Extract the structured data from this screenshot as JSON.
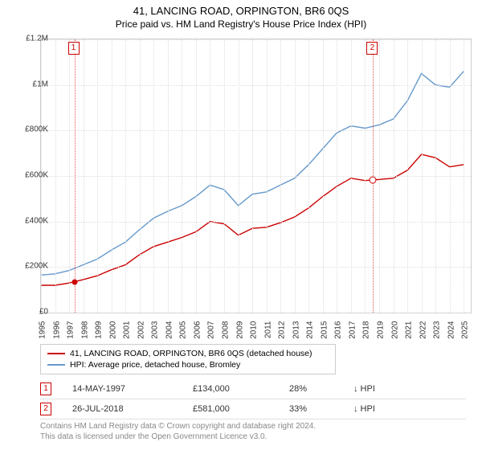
{
  "title": "41, LANCING ROAD, ORPINGTON, BR6 0QS",
  "subtitle": "Price paid vs. HM Land Registry's House Price Index (HPI)",
  "chart": {
    "type": "line",
    "background_color": "#ffffff",
    "grid_color": "#dddddd",
    "border_color": "#cccccc",
    "xlim": [
      1995,
      2025.5
    ],
    "ylim": [
      0,
      1200000
    ],
    "y_ticks": [
      0,
      200000,
      400000,
      600000,
      800000,
      1000000,
      1200000
    ],
    "y_tick_labels": [
      "£0",
      "£200K",
      "£400K",
      "£600K",
      "£800K",
      "£1M",
      "£1.2M"
    ],
    "x_ticks": [
      1995,
      1996,
      1997,
      1998,
      1999,
      2000,
      2001,
      2002,
      2003,
      2004,
      2005,
      2006,
      2007,
      2008,
      2009,
      2010,
      2011,
      2012,
      2013,
      2014,
      2015,
      2016,
      2017,
      2018,
      2019,
      2020,
      2021,
      2022,
      2023,
      2024,
      2025
    ],
    "label_fontsize": 10,
    "line_width": 1.4,
    "series": [
      {
        "name": "41, LANCING ROAD, ORPINGTON, BR6 0QS (detached house)",
        "color": "#cc0000",
        "x": [
          1995,
          1996,
          1997,
          1998,
          1999,
          2000,
          2001,
          2002,
          2003,
          2004,
          2005,
          2006,
          2007,
          2008,
          2009,
          2010,
          2011,
          2012,
          2013,
          2014,
          2015,
          2016,
          2017,
          2018,
          2019,
          2020,
          2021,
          2022,
          2023,
          2024,
          2025
        ],
        "y": [
          120000,
          120000,
          130000,
          145000,
          162000,
          188000,
          210000,
          255000,
          290000,
          310000,
          330000,
          355000,
          400000,
          390000,
          340000,
          370000,
          375000,
          395000,
          420000,
          460000,
          510000,
          555000,
          590000,
          580000,
          585000,
          590000,
          625000,
          695000,
          680000,
          640000,
          650000
        ]
      },
      {
        "name": "HPI: Average price, detached house, Bromley",
        "color": "#6699cc",
        "x": [
          1995,
          1996,
          1997,
          1998,
          1999,
          2000,
          2001,
          2002,
          2003,
          2004,
          2005,
          2006,
          2007,
          2008,
          2009,
          2010,
          2011,
          2012,
          2013,
          2014,
          2015,
          2016,
          2017,
          2018,
          2019,
          2020,
          2021,
          2022,
          2023,
          2024,
          2025
        ],
        "y": [
          165000,
          170000,
          185000,
          210000,
          235000,
          275000,
          310000,
          365000,
          415000,
          445000,
          470000,
          510000,
          560000,
          540000,
          470000,
          520000,
          530000,
          560000,
          590000,
          650000,
          720000,
          790000,
          820000,
          810000,
          825000,
          850000,
          930000,
          1050000,
          1000000,
          990000,
          1060000
        ]
      }
    ],
    "markers": [
      {
        "id": "1",
        "x": 1997.37,
        "y": 134000,
        "vline_color": "#d9534f",
        "date": "14-MAY-1997",
        "price": "£134,000",
        "pct": "28%",
        "direction": "↓",
        "vs": "HPI"
      },
      {
        "id": "2",
        "x": 2018.57,
        "y": 581000,
        "vline_color": "#d9534f",
        "date": "26-JUL-2018",
        "price": "£581,000",
        "pct": "33%",
        "direction": "↓",
        "vs": "HPI"
      }
    ]
  },
  "footer": {
    "line1": "Contains HM Land Registry data © Crown copyright and database right 2024.",
    "line2": "This data is licensed under the Open Government Licence v3.0."
  }
}
